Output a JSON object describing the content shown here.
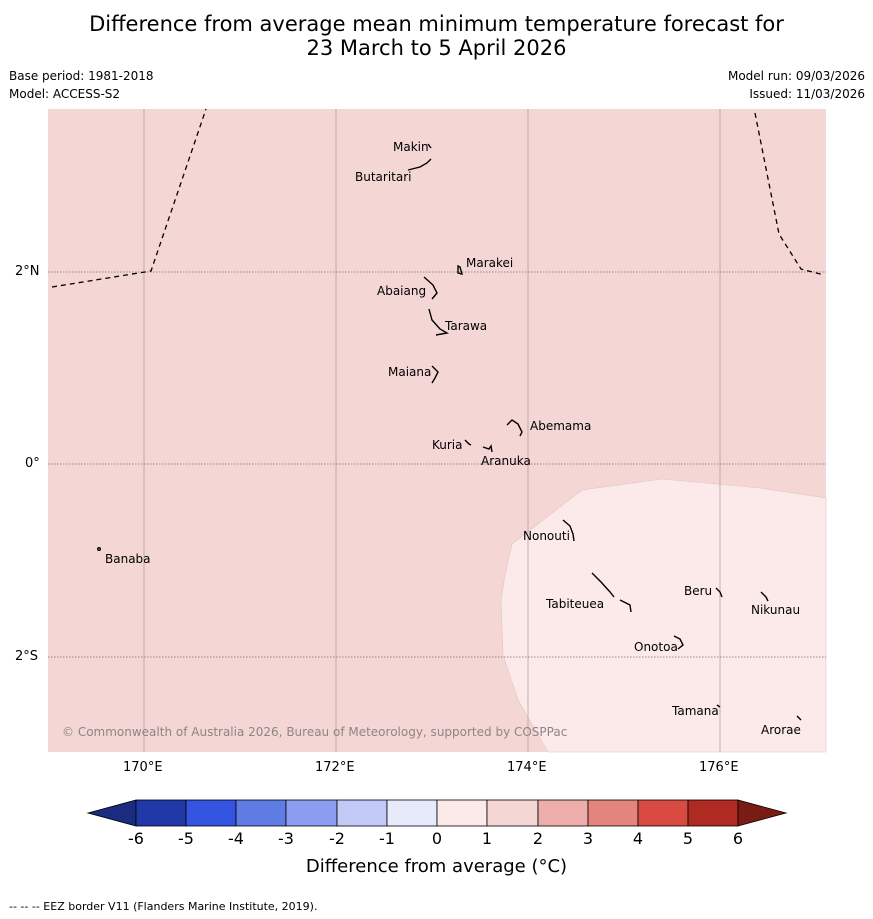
{
  "title": {
    "line1": "Difference from average mean minimum temperature forecast for",
    "line2": "23 March to 5 April 2026"
  },
  "meta": {
    "base_period": "Base period: 1981-2018",
    "model": "Model: ACCESS-S2",
    "model_run": "Model run: 09/03/2026",
    "issued": "Issued: 11/03/2026"
  },
  "map": {
    "lat_labels": [
      "2°N",
      "0°",
      "2°S"
    ],
    "lon_labels": [
      "170°E",
      "172°E",
      "174°E",
      "176°E"
    ],
    "copyright": "© Commonwealth of Australia 2026, Bureau of Meteorology, supported by COSPPac",
    "places": [
      {
        "name": "Makin"
      },
      {
        "name": "Butaritari"
      },
      {
        "name": "Marakei"
      },
      {
        "name": "Abaiang"
      },
      {
        "name": "Tarawa"
      },
      {
        "name": "Maiana"
      },
      {
        "name": "Abemama"
      },
      {
        "name": "Kuria"
      },
      {
        "name": "Aranuka"
      },
      {
        "name": "Banaba"
      },
      {
        "name": "Nonouti"
      },
      {
        "name": "Tabiteuea"
      },
      {
        "name": "Beru"
      },
      {
        "name": "Nikunau"
      },
      {
        "name": "Onotoa"
      },
      {
        "name": "Tamana"
      },
      {
        "name": "Arorae"
      }
    ],
    "colors": {
      "anomaly_1_2": "#f4d6d5",
      "anomaly_0_1": "#fbeae9"
    }
  },
  "colorbar": {
    "label": "Difference from average (°C)",
    "ticks": [
      "-6",
      "-5",
      "-4",
      "-3",
      "-2",
      "-1",
      "0",
      "1",
      "2",
      "3",
      "4",
      "5",
      "6"
    ],
    "colors": [
      "#1a2c80",
      "#2139a8",
      "#3354e0",
      "#5f7be4",
      "#8b9df0",
      "#c1c9f6",
      "#e6eafb",
      "#fbeae9",
      "#f4d6d5",
      "#edaeab",
      "#e3847d",
      "#d94b42",
      "#ae2a22",
      "#7a1c14"
    ]
  },
  "footer": "--  --  -- EEZ border V11 (Flanders Marine Institute, 2019)."
}
